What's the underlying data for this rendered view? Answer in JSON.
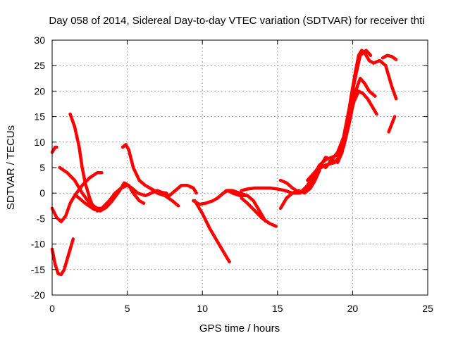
{
  "chart_data": {
    "type": "line",
    "title": "Day 058 of 2014, Sidereal Day-to-day VTEC variation (SDTVAR) for receiver thti",
    "xlabel": "GPS time / hours",
    "ylabel": "SDTVAR / TECUs",
    "xlim": [
      0,
      25
    ],
    "ylim": [
      -20,
      30
    ],
    "xticks": [
      0,
      5,
      10,
      15,
      20,
      25
    ],
    "yticks": [
      -20,
      -15,
      -10,
      -5,
      0,
      5,
      10,
      15,
      20,
      25,
      30
    ],
    "grid": true,
    "color": "#ff0000",
    "series": [
      {
        "x": [
          0.0,
          0.2,
          0.3
        ],
        "y": [
          8,
          9,
          9
        ]
      },
      {
        "x": [
          0.0,
          0.3,
          0.6,
          0.9,
          1.2,
          1.5,
          2.0,
          2.5,
          3.0,
          3.3
        ],
        "y": [
          -3,
          -4.8,
          -5.6,
          -4.5,
          -2,
          -0.5,
          1.5,
          3,
          4,
          4
        ]
      },
      {
        "x": [
          0.0,
          0.2,
          0.4,
          0.6,
          0.8,
          1.0,
          1.2,
          1.4
        ],
        "y": [
          -11,
          -14,
          -15.8,
          -16,
          -15,
          -13,
          -11,
          -9
        ]
      },
      {
        "x": [
          0.5,
          1.0,
          1.5,
          2.0,
          2.5,
          3.0,
          3.3
        ],
        "y": [
          5,
          4,
          2.5,
          0,
          -2,
          -3,
          -3
        ]
      },
      {
        "x": [
          1.2,
          1.5,
          1.8,
          2.0,
          2.2,
          2.5,
          2.7,
          3.0,
          3.4
        ],
        "y": [
          15.5,
          13,
          9,
          5,
          2,
          -1,
          -2.5,
          -3.5,
          -3
        ]
      },
      {
        "x": [
          1.6,
          2.2,
          2.8,
          3.2,
          3.6,
          4.0,
          4.5,
          4.8,
          5.1,
          5.4,
          5.8,
          6.1
        ],
        "y": [
          -0.5,
          -2,
          -3.2,
          -3.5,
          -2.8,
          -1.5,
          0.5,
          2,
          1.5,
          0,
          -1.5,
          -2
        ]
      },
      {
        "x": [
          4.7,
          4.9,
          5.1,
          5.4,
          5.8,
          6.2,
          6.8,
          7.2,
          7.6
        ],
        "y": [
          9,
          9.5,
          8.5,
          5,
          2.5,
          1.5,
          0.5,
          0.2,
          0
        ]
      },
      {
        "x": [
          3.3,
          3.8,
          4.2,
          4.6,
          5.0,
          5.3,
          5.7,
          6.2,
          6.6,
          7.0,
          7.4,
          7.8,
          8.2,
          8.6,
          9.0,
          9.4,
          9.6
        ],
        "y": [
          -3,
          -1.5,
          0,
          1,
          1.5,
          1,
          0,
          -0.5,
          0,
          0.5,
          0,
          -0.5,
          0.5,
          1.5,
          1.5,
          1,
          0
        ]
      },
      {
        "x": [
          6.5,
          7.0,
          7.5,
          8.0,
          8.4
        ],
        "y": [
          1,
          0,
          -0.5,
          -1.5,
          -2.5
        ]
      },
      {
        "x": [
          9.5,
          10.0,
          10.5,
          11.0,
          11.5,
          11.8
        ],
        "y": [
          -1.5,
          -4,
          -7,
          -9.5,
          -12,
          -13.5
        ]
      },
      {
        "x": [
          9.4,
          9.8,
          10.2,
          10.7,
          11.0,
          11.4,
          11.7,
          12.0,
          12.5,
          13.0
        ],
        "y": [
          -1.5,
          -2.2,
          -2,
          -1.5,
          -1,
          0,
          0.5,
          0,
          -0.5,
          -0.5
        ]
      },
      {
        "x": [
          11.2,
          11.6,
          12.0,
          12.5,
          13.0,
          13.4,
          13.8,
          14.2
        ],
        "y": [
          -0.5,
          0.5,
          0.5,
          0,
          -0.5,
          -1.5,
          -3.5,
          -5.5
        ]
      },
      {
        "x": [
          12.6,
          13.0,
          13.5,
          14.0,
          14.5,
          14.9
        ],
        "y": [
          -1,
          -2,
          -3.5,
          -5,
          -6,
          -6.5
        ]
      },
      {
        "x": [
          12.6,
          13.0,
          13.5,
          14.0,
          14.5,
          15.0,
          15.5,
          16.0,
          16.5,
          17.0,
          17.5,
          17.8,
          18.2,
          18.6,
          19.0,
          19.4,
          19.8,
          20.2,
          20.5,
          20.8,
          21.1,
          21.5
        ],
        "y": [
          0.5,
          0.8,
          1,
          1,
          1,
          0.8,
          0.5,
          0,
          0,
          1.5,
          4,
          5.5,
          6.5,
          7,
          7.5,
          9,
          14,
          20,
          22.5,
          21.5,
          20,
          19
        ]
      },
      {
        "x": [
          15.2,
          15.6,
          16.0,
          16.4,
          16.8,
          17.2,
          17.5,
          17.8
        ],
        "y": [
          -3,
          -1,
          0,
          0.5,
          0,
          1,
          2.5,
          4.5
        ]
      },
      {
        "x": [
          15.2,
          15.6,
          16.0,
          16.5,
          17.0,
          17.4,
          17.8,
          18.2,
          18.6,
          19.0,
          19.3,
          19.6,
          19.9,
          20.2,
          20.4,
          20.6,
          20.8,
          21.1,
          21.4,
          21.8,
          22.2,
          22.6,
          22.9
        ],
        "y": [
          2.5,
          2,
          1,
          0,
          1,
          3,
          5,
          7,
          6.5,
          6,
          8,
          13,
          19,
          24,
          27,
          28,
          27.5,
          26,
          25.5,
          26,
          25,
          21,
          18.5
        ]
      },
      {
        "x": [
          17.0,
          17.6,
          18.2,
          18.8,
          19.2,
          19.5,
          19.8,
          20.1,
          20.4,
          20.7,
          21.0,
          21.3,
          21.6
        ],
        "y": [
          2.5,
          4.5,
          5.5,
          6,
          7.5,
          11,
          15,
          18,
          20,
          19.5,
          18.5,
          17,
          15.5
        ]
      },
      {
        "x": [
          18.2,
          18.6,
          19.0,
          19.4,
          19.8,
          20.2,
          20.5,
          20.9,
          21.2
        ],
        "y": [
          5,
          6.5,
          8,
          11,
          17,
          23,
          27,
          28,
          27
        ]
      },
      {
        "x": [
          22.0,
          22.3,
          22.6,
          22.9
        ],
        "y": [
          26.5,
          27,
          26.8,
          26.2
        ]
      },
      {
        "x": [
          22.4,
          22.6,
          22.8
        ],
        "y": [
          12,
          13.5,
          15
        ]
      }
    ]
  }
}
